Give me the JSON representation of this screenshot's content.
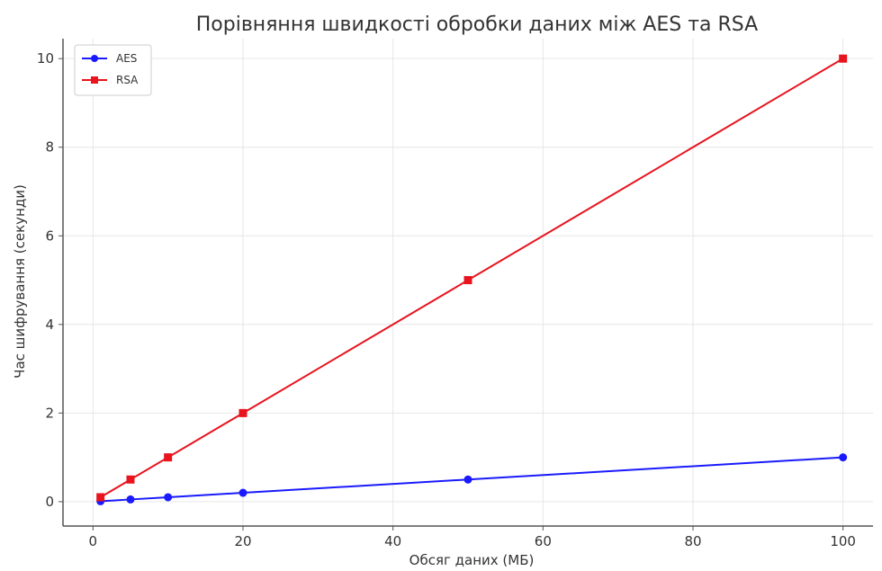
{
  "chart_data": {
    "type": "line",
    "title": "Порівняння швидкості обробки даних між AES та RSA",
    "xlabel": "Обсяг даних (МБ)",
    "ylabel": "Час шифрування (секунди)",
    "x": [
      1,
      5,
      10,
      20,
      50,
      100
    ],
    "xlim": [
      -4,
      104
    ],
    "ylim": [
      -0.55,
      10.45
    ],
    "xticks": [
      0,
      20,
      40,
      60,
      80,
      100
    ],
    "yticks": [
      0,
      2,
      4,
      6,
      8,
      10
    ],
    "grid": true,
    "legend_position": "top-left",
    "series": [
      {
        "name": "AES",
        "color": "#1a1aff",
        "marker": "circle",
        "values": [
          0.01,
          0.05,
          0.1,
          0.2,
          0.5,
          1.0
        ]
      },
      {
        "name": "RSA",
        "color": "#e8141e",
        "marker": "square",
        "values": [
          0.1,
          0.5,
          1.0,
          2.0,
          5.0,
          10.0
        ]
      }
    ]
  }
}
